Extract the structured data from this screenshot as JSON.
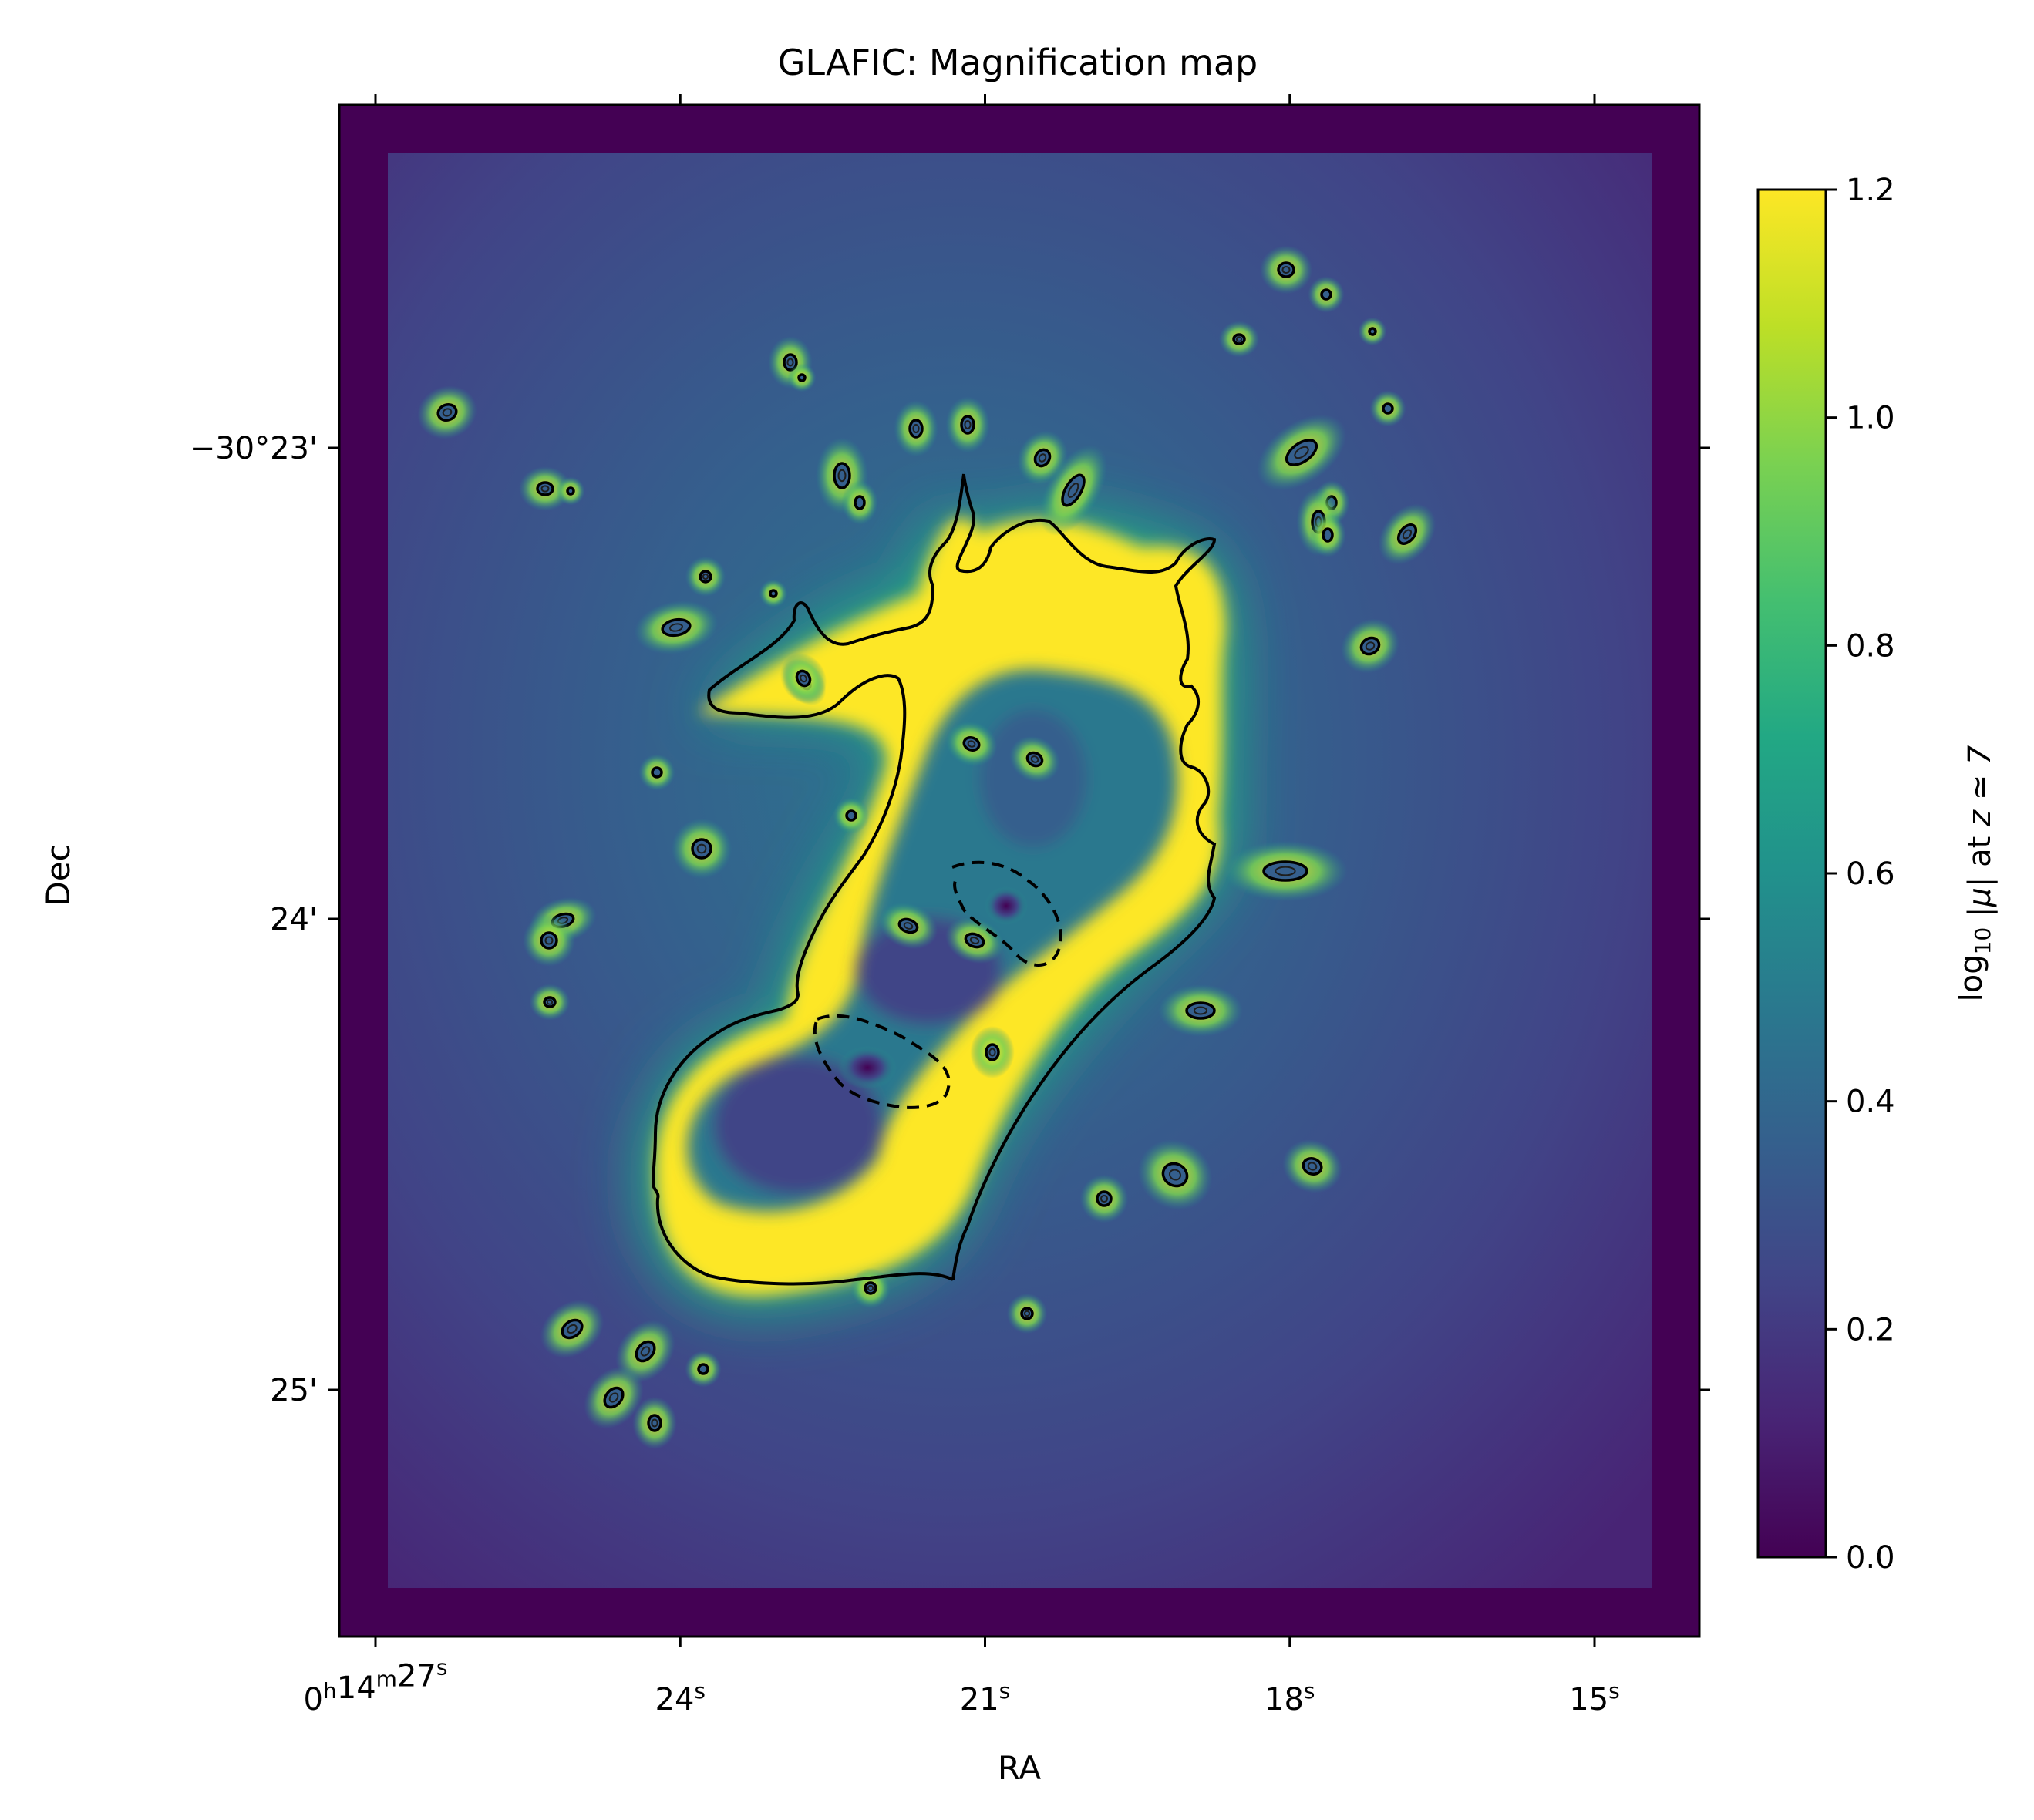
{
  "chart_data": {
    "type": "heatmap",
    "title": "GLAFIC: Magnification map",
    "xlabel": "RA",
    "ylabel": "Dec",
    "x_ticks": [
      {
        "value_s": 27,
        "label_parts": [
          [
            "0",
            "normal"
          ],
          [
            "h",
            "sup"
          ],
          [
            "14",
            "normal"
          ],
          [
            "m",
            "sup"
          ],
          [
            "27",
            "normal"
          ],
          [
            "s",
            "sup"
          ]
        ]
      },
      {
        "value_s": 24,
        "label_parts": [
          [
            "24",
            "normal"
          ],
          [
            "s",
            "sup"
          ]
        ]
      },
      {
        "value_s": 21,
        "label_parts": [
          [
            "21",
            "normal"
          ],
          [
            "s",
            "sup"
          ]
        ]
      },
      {
        "value_s": 18,
        "label_parts": [
          [
            "18",
            "normal"
          ],
          [
            "s",
            "sup"
          ]
        ]
      },
      {
        "value_s": 15,
        "label_parts": [
          [
            "15",
            "normal"
          ],
          [
            "s",
            "sup"
          ]
        ]
      }
    ],
    "y_ticks": [
      {
        "value_arcmin": 23,
        "label": "−30°23'"
      },
      {
        "value_arcmin": 24,
        "label": "24'"
      },
      {
        "value_arcmin": 25,
        "label": "25'"
      }
    ],
    "colorbar": {
      "label": "log10 |μ| at z ≃ 7",
      "label_parts": [
        [
          "log",
          "normal"
        ],
        [
          "10",
          "sub"
        ],
        [
          " |",
          "normal"
        ],
        [
          "μ",
          "italic"
        ],
        [
          "|  at  ",
          "normal"
        ],
        [
          "z",
          "italic"
        ],
        [
          " ≃ 7",
          "italic"
        ]
      ],
      "range": [
        0.0,
        1.2
      ],
      "ticks": [
        "0.0",
        "0.2",
        "0.4",
        "0.6",
        "0.8",
        "1.0",
        "1.2"
      ],
      "colormap": "viridis",
      "colors": [
        "#440154",
        "#482475",
        "#414487",
        "#355f8d",
        "#2a788e",
        "#21918c",
        "#22a884",
        "#44bf70",
        "#7ad151",
        "#bddf26",
        "#fde725"
      ]
    },
    "critical_curves": {
      "solid": "critical curve at z ≃ 7",
      "dashed": "inner radial critical curves"
    },
    "grid": false
  }
}
